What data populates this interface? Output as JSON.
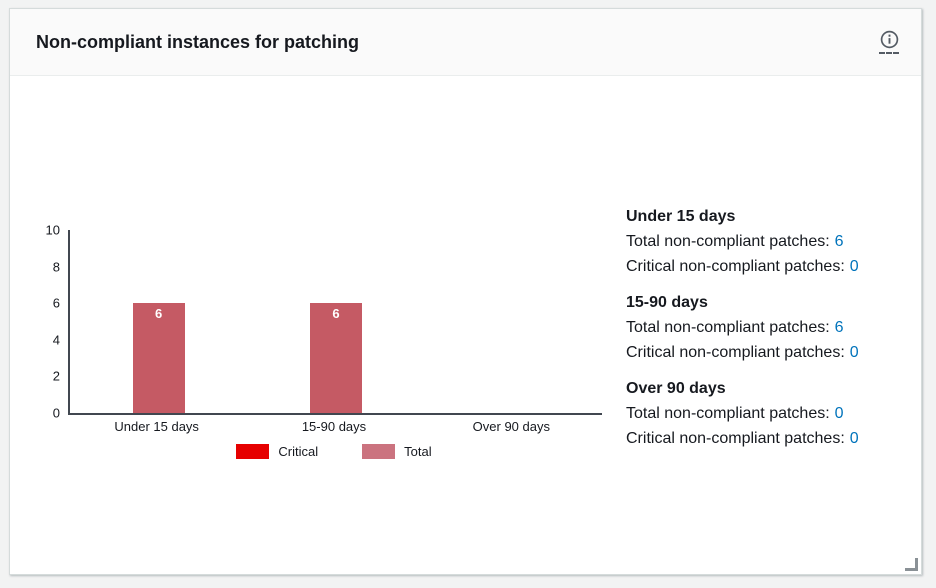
{
  "header": {
    "title": "Non-compliant instances for patching",
    "info_icon": "info-circle-icon"
  },
  "chart_data": {
    "type": "bar",
    "title": "",
    "xlabel": "",
    "ylabel": "",
    "categories": [
      "Under 15 days",
      "15-90 days",
      "Over 90 days"
    ],
    "series": [
      {
        "name": "Critical",
        "values": [
          0,
          0,
          0
        ],
        "color": "#e60000",
        "legend_color": "#e60000"
      },
      {
        "name": "Total",
        "values": [
          6,
          6,
          0
        ],
        "color": "#c55a64",
        "legend_color": "#cb737f"
      }
    ],
    "ylim": [
      0,
      10
    ],
    "yticks": [
      0,
      2,
      4,
      6,
      8,
      10
    ],
    "grid": false,
    "legend_position": "bottom",
    "bar_value_labels": true,
    "bar_label_color": "#ffffff"
  },
  "summary": {
    "blocks": [
      {
        "heading": "Under 15 days",
        "lines": [
          {
            "label": "Total non-compliant patches:",
            "value": "6"
          },
          {
            "label": "Critical non-compliant patches:",
            "value": "0"
          }
        ]
      },
      {
        "heading": "15-90 days",
        "lines": [
          {
            "label": "Total non-compliant patches:",
            "value": "6"
          },
          {
            "label": "Critical non-compliant patches:",
            "value": "0"
          }
        ]
      },
      {
        "heading": "Over 90 days",
        "lines": [
          {
            "label": "Total non-compliant patches:",
            "value": "0"
          },
          {
            "label": "Critical non-compliant patches:",
            "value": "0"
          }
        ]
      }
    ]
  },
  "colors": {
    "link_blue": "#0073bb",
    "critical_red": "#e60000",
    "total_rose": "#c55a64",
    "text": "#16191f",
    "axis": "#414750",
    "header_bg": "#fafafa",
    "page_bg": "#f2f3f3"
  },
  "resize_handle": "resize-corner-icon"
}
